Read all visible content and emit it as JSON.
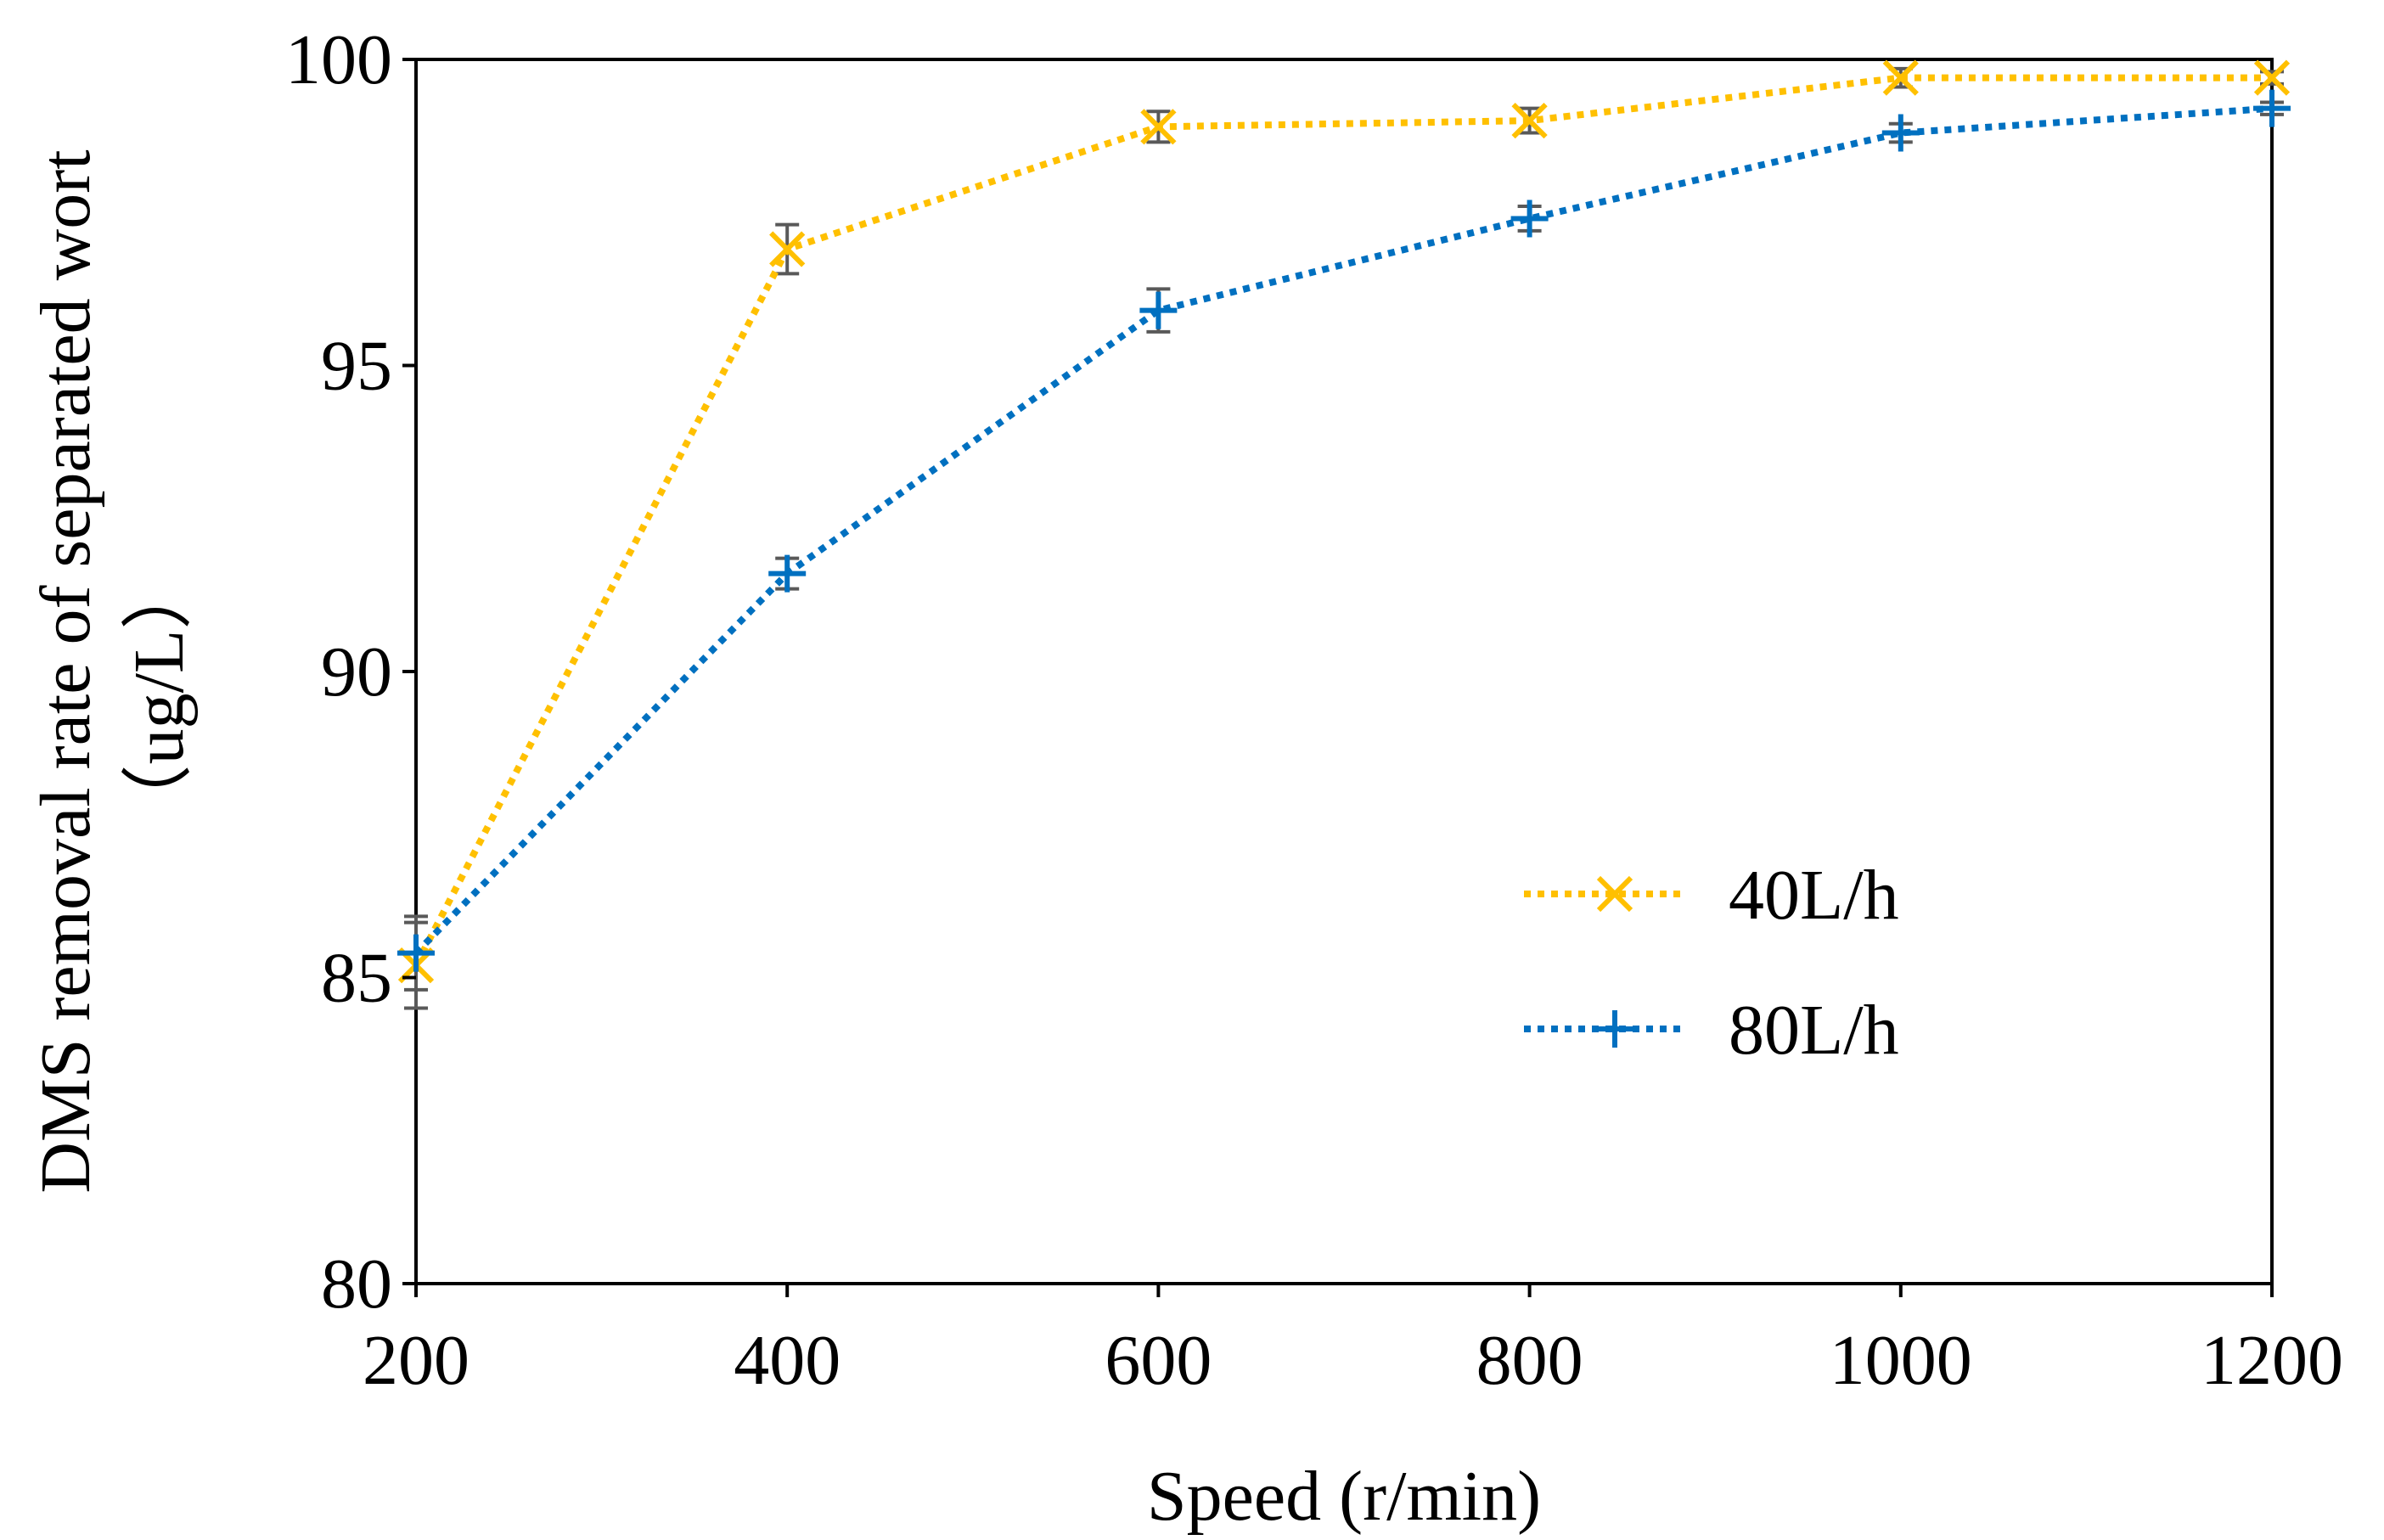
{
  "chart_data": {
    "type": "line",
    "title": "",
    "xlabel": "Speed (r/min)",
    "ylabel_line1": "DMS removal rate of separated wort",
    "ylabel_line2": "（ug/L）",
    "x": [
      200,
      400,
      600,
      800,
      1000,
      1200
    ],
    "xlim": [
      200,
      1200
    ],
    "ylim": [
      80,
      100
    ],
    "x_ticks": [
      "200",
      "400",
      "600",
      "800",
      "1000",
      "1200"
    ],
    "y_ticks": [
      "80",
      "85",
      "90",
      "95",
      "100"
    ],
    "legend_position": "center-right",
    "series": [
      {
        "name": "40L/h",
        "marker": "x",
        "color": "#FFC000",
        "values": [
          85.2,
          96.9,
          98.9,
          99.0,
          99.7,
          99.7
        ],
        "errors": [
          0.7,
          0.4,
          0.25,
          0.2,
          0.15,
          0.1
        ]
      },
      {
        "name": "80L/h",
        "marker": "+",
        "color": "#0070C0",
        "values": [
          85.4,
          91.6,
          95.9,
          97.4,
          98.8,
          99.2
        ],
        "errors": [
          0.6,
          0.25,
          0.35,
          0.2,
          0.15,
          0.1
        ]
      }
    ],
    "error_bar_color": "#595959",
    "grid": false
  }
}
